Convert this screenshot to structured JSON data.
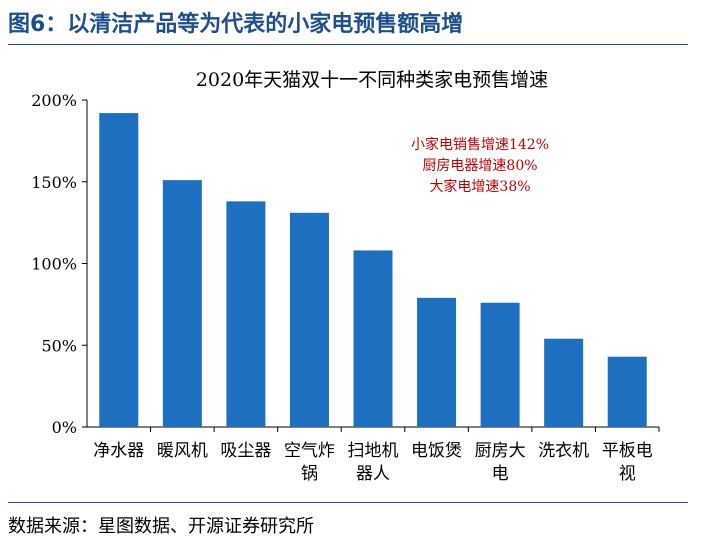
{
  "figure_title": "图6：以清洁产品等为代表的小家电预售额高增",
  "source": "数据来源：星图数据、开源证券研究所",
  "colors": {
    "bar": "#1f6fc0",
    "annotation": "#c00000",
    "title_blue": "#1f4e8c"
  },
  "chart_data": {
    "type": "bar",
    "title": "2020年天猫双十一不同种类家电预售增速",
    "categories": [
      "净水器",
      "暖风机",
      "吸尘器",
      "空气炸锅",
      "扫地机器人",
      "电饭煲",
      "厨房大电",
      "洗衣机",
      "平板电视"
    ],
    "category_lines": [
      [
        "净水器"
      ],
      [
        "暖风机"
      ],
      [
        "吸尘器"
      ],
      [
        "空气炸",
        "锅"
      ],
      [
        "扫地机",
        "器人"
      ],
      [
        "电饭煲"
      ],
      [
        "厨房大",
        "电"
      ],
      [
        "洗衣机"
      ],
      [
        "平板电",
        "视"
      ]
    ],
    "values": [
      192,
      151,
      138,
      131,
      108,
      79,
      76,
      54,
      43
    ],
    "ylim": [
      0,
      200
    ],
    "yticks": [
      0,
      50,
      100,
      150,
      200
    ],
    "ytick_labels": [
      "0%",
      "50%",
      "100%",
      "150%",
      "200%"
    ],
    "annotations": [
      "小家电销售增速142%",
      "厨房电器增速80%",
      "大家电增速38%"
    ],
    "grid": false,
    "legend": "none"
  }
}
